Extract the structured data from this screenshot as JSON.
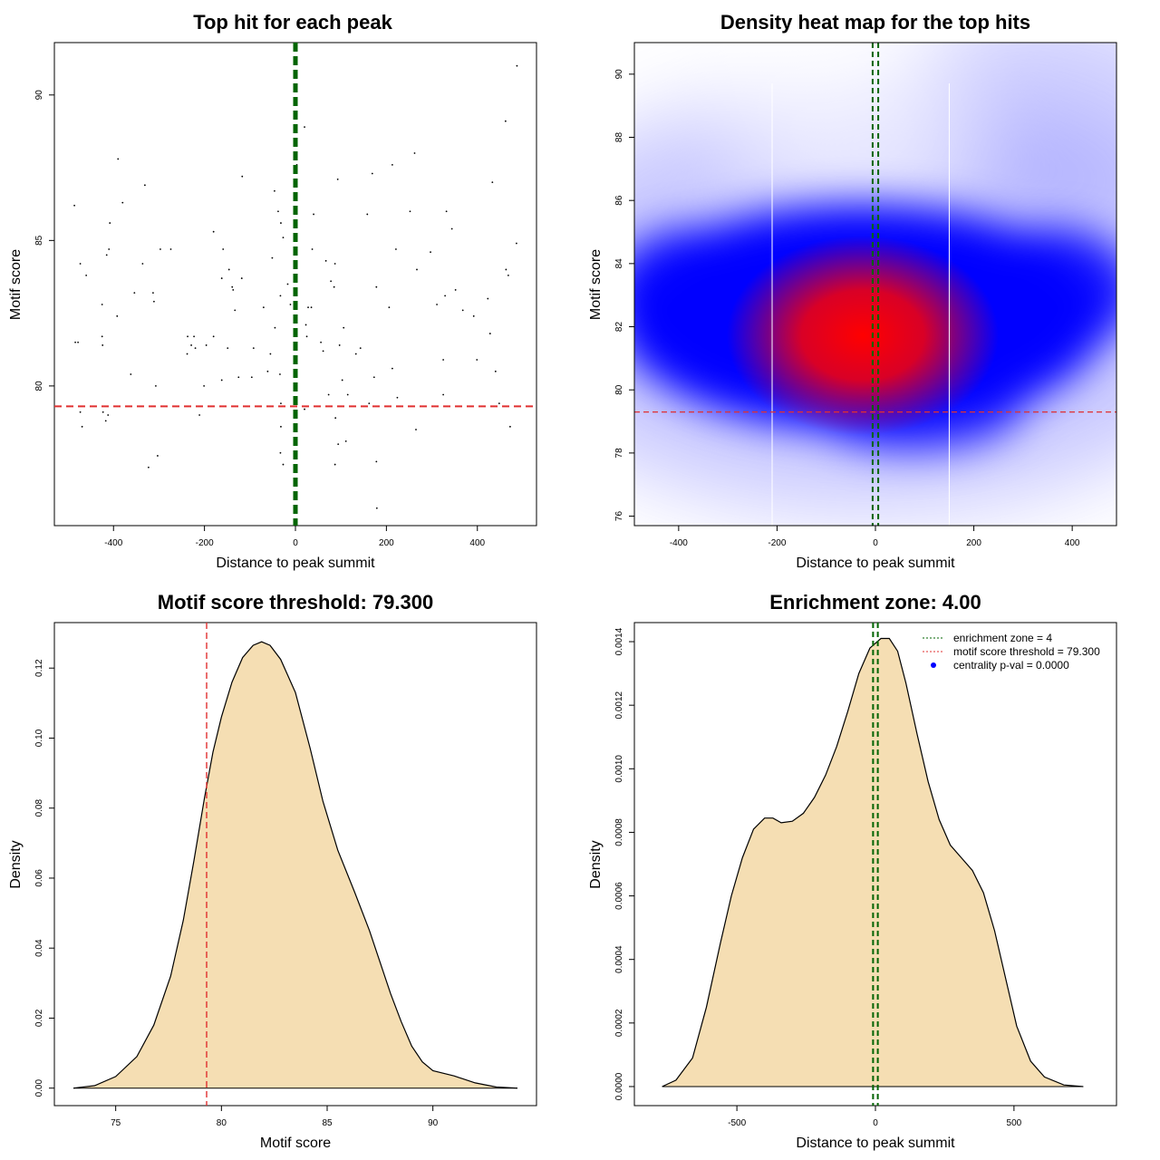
{
  "chart_data": [
    {
      "id": "scatter",
      "type": "scatter",
      "title": "Top hit for each peak",
      "xlabel": "Distance to peak summit",
      "ylabel": "Motif score",
      "xlim": [
        -530,
        530
      ],
      "ylim": [
        75.2,
        91.8
      ],
      "xticks": [
        -400,
        -200,
        0,
        200,
        400
      ],
      "xtick_labels": [
        "-400",
        "-200",
        "0",
        "200",
        "400"
      ],
      "yticks": [
        80,
        85,
        90
      ],
      "ytick_labels": [
        "80",
        "85",
        "90"
      ],
      "enrichment_lines_x": [
        -2,
        2
      ],
      "threshold_y": 79.3,
      "points": [
        [
          487,
          91.0
        ],
        [
          462,
          89.1
        ],
        [
          486,
          84.9
        ],
        [
          463,
          84.0
        ],
        [
          468,
          83.8
        ],
        [
          433,
          87.0
        ],
        [
          440,
          80.5
        ],
        [
          423,
          83.0
        ],
        [
          428,
          81.8
        ],
        [
          448,
          79.4
        ],
        [
          472,
          78.6
        ],
        [
          392,
          82.4
        ],
        [
          399,
          80.9
        ],
        [
          368,
          82.6
        ],
        [
          352,
          83.3
        ],
        [
          344,
          85.4
        ],
        [
          332,
          86.0
        ],
        [
          325,
          80.9
        ],
        [
          329,
          83.1
        ],
        [
          311,
          82.8
        ],
        [
          325,
          79.7
        ],
        [
          297,
          84.6
        ],
        [
          262,
          88.0
        ],
        [
          267,
          84.0
        ],
        [
          265,
          78.5
        ],
        [
          252,
          86.0
        ],
        [
          213,
          87.6
        ],
        [
          221,
          84.7
        ],
        [
          224,
          79.6
        ],
        [
          213,
          80.6
        ],
        [
          206,
          82.7
        ],
        [
          178,
          83.4
        ],
        [
          173,
          80.3
        ],
        [
          169,
          87.3
        ],
        [
          158,
          85.9
        ],
        [
          162,
          79.4
        ],
        [
          178,
          77.4
        ],
        [
          179,
          75.8
        ],
        [
          143,
          81.3
        ],
        [
          133,
          81.1
        ],
        [
          115,
          79.7
        ],
        [
          111,
          78.1
        ],
        [
          106,
          82.0
        ],
        [
          103,
          80.2
        ],
        [
          97,
          81.4
        ],
        [
          94,
          78.0
        ],
        [
          88,
          78.9
        ],
        [
          87,
          77.3
        ],
        [
          93,
          87.1
        ],
        [
          87,
          84.2
        ],
        [
          85,
          83.4
        ],
        [
          78,
          83.6
        ],
        [
          73,
          79.7
        ],
        [
          67,
          84.3
        ],
        [
          61,
          81.2
        ],
        [
          56,
          81.5
        ],
        [
          40,
          85.9
        ],
        [
          37,
          84.7
        ],
        [
          35,
          82.7
        ],
        [
          28,
          82.7
        ],
        [
          23,
          82.1
        ],
        [
          25,
          81.7
        ],
        [
          20,
          79.2
        ],
        [
          20,
          88.9
        ],
        [
          3,
          87.6
        ],
        [
          -3,
          87.4
        ],
        [
          -17,
          83.5
        ],
        [
          -11,
          82.8
        ],
        [
          -27,
          85.1
        ],
        [
          -38,
          86.0
        ],
        [
          -32,
          85.6
        ],
        [
          -46,
          86.7
        ],
        [
          -45,
          82.0
        ],
        [
          -51,
          84.4
        ],
        [
          -61,
          80.5
        ],
        [
          -55,
          81.1
        ],
        [
          -70,
          82.7
        ],
        [
          -32,
          79.4
        ],
        [
          -32,
          78.6
        ],
        [
          -33,
          77.7
        ],
        [
          -27,
          77.3
        ],
        [
          -34,
          80.4
        ],
        [
          -33,
          83.1
        ],
        [
          -92,
          81.3
        ],
        [
          -96,
          80.3
        ],
        [
          -117,
          87.2
        ],
        [
          -118,
          83.7
        ],
        [
          -125,
          80.3
        ],
        [
          -133,
          82.6
        ],
        [
          -139,
          83.4
        ],
        [
          -137,
          83.3
        ],
        [
          -146,
          84.0
        ],
        [
          -149,
          81.3
        ],
        [
          -159,
          84.7
        ],
        [
          -162,
          83.7
        ],
        [
          -162,
          80.2
        ],
        [
          -180,
          85.3
        ],
        [
          -180,
          81.7
        ],
        [
          -196,
          81.4
        ],
        [
          -201,
          80.0
        ],
        [
          -211,
          79.0
        ],
        [
          -220,
          81.3
        ],
        [
          -223,
          81.7
        ],
        [
          -229,
          81.4
        ],
        [
          -237,
          81.7
        ],
        [
          -238,
          81.1
        ],
        [
          -274,
          84.7
        ],
        [
          -297,
          84.7
        ],
        [
          -303,
          77.6
        ],
        [
          -307,
          80.0
        ],
        [
          -311,
          82.9
        ],
        [
          -313,
          83.2
        ],
        [
          -323,
          77.2
        ],
        [
          -331,
          86.9
        ],
        [
          -336,
          84.2
        ],
        [
          -362,
          80.4
        ],
        [
          -354,
          83.2
        ],
        [
          -380,
          86.3
        ],
        [
          -390,
          87.8
        ],
        [
          -392,
          82.4
        ],
        [
          -408,
          85.6
        ],
        [
          -410,
          84.7
        ],
        [
          -415,
          84.5
        ],
        [
          -412,
          79.0
        ],
        [
          -417,
          78.8
        ],
        [
          -423,
          79.1
        ],
        [
          -425,
          82.8
        ],
        [
          -425,
          81.7
        ],
        [
          -424,
          81.4
        ],
        [
          -460,
          83.8
        ],
        [
          -473,
          84.2
        ],
        [
          -473,
          79.1
        ],
        [
          -469,
          78.6
        ],
        [
          -478,
          81.5
        ],
        [
          -484,
          81.5
        ],
        [
          -486,
          86.2
        ]
      ]
    },
    {
      "id": "heatmap",
      "type": "heatmap",
      "title": "Density heat map for the top hits",
      "xlabel": "Distance to peak summit",
      "ylabel": "Motif score",
      "xlim": [
        -490,
        490
      ],
      "ylim": [
        75.7,
        91.0
      ],
      "xticks": [
        -400,
        -200,
        0,
        200,
        400
      ],
      "xtick_labels": [
        "-400",
        "-200",
        "0",
        "200",
        "400"
      ],
      "yticks": [
        76,
        78,
        80,
        82,
        84,
        86,
        88,
        90
      ],
      "ytick_labels": [
        "76",
        "78",
        "80",
        "82",
        "84",
        "86",
        "88",
        "90"
      ],
      "vertical_white_lines_x": [
        -210,
        150
      ],
      "enrichment_lines_x": [
        -2,
        2
      ],
      "threshold_y": 79.3,
      "density_peak": {
        "x": -10,
        "y": 81.5
      },
      "colors": {
        "low": "#ffffff",
        "mid": "#0000ff",
        "high": "#ff0000"
      }
    },
    {
      "id": "score_density",
      "type": "area",
      "title": "Motif score threshold: 79.300",
      "xlabel": "Motif score",
      "ylabel": "Density",
      "xlim": [
        72.1,
        94.9
      ],
      "ylim": [
        -0.005,
        0.133
      ],
      "xticks": [
        75,
        80,
        85,
        90
      ],
      "xtick_labels": [
        "75",
        "80",
        "85",
        "90"
      ],
      "yticks": [
        0.0,
        0.02,
        0.04,
        0.06,
        0.08,
        0.1,
        0.12
      ],
      "ytick_labels": [
        "0.00",
        "0.02",
        "0.04",
        "0.06",
        "0.08",
        "0.10",
        "0.12"
      ],
      "threshold_x": 79.3,
      "fill": "#f5deb3",
      "points": [
        [
          73.0,
          0.0
        ],
        [
          74.0,
          0.0007
        ],
        [
          75.0,
          0.0033
        ],
        [
          76.0,
          0.009
        ],
        [
          76.8,
          0.018
        ],
        [
          77.6,
          0.032
        ],
        [
          78.2,
          0.048
        ],
        [
          78.7,
          0.065
        ],
        [
          79.2,
          0.083
        ],
        [
          79.6,
          0.096
        ],
        [
          80.0,
          0.106
        ],
        [
          80.5,
          0.116
        ],
        [
          81.0,
          0.123
        ],
        [
          81.5,
          0.1265
        ],
        [
          81.9,
          0.1275
        ],
        [
          82.3,
          0.1265
        ],
        [
          82.8,
          0.1225
        ],
        [
          83.5,
          0.113
        ],
        [
          84.2,
          0.097
        ],
        [
          84.8,
          0.082
        ],
        [
          85.5,
          0.068
        ],
        [
          86.3,
          0.056
        ],
        [
          87.0,
          0.045
        ],
        [
          87.5,
          0.036
        ],
        [
          88.0,
          0.027
        ],
        [
          88.5,
          0.019
        ],
        [
          89.0,
          0.012
        ],
        [
          89.5,
          0.0075
        ],
        [
          90.0,
          0.005
        ],
        [
          91.0,
          0.0035
        ],
        [
          92.0,
          0.0015
        ],
        [
          93.0,
          0.0003
        ],
        [
          94.0,
          0.0
        ]
      ]
    },
    {
      "id": "distance_density",
      "type": "area",
      "title": "Enrichment zone: 4.00",
      "xlabel": "Distance to peak summit",
      "ylabel": "Density",
      "xlim": [
        -870,
        870
      ],
      "ylim": [
        -6e-05,
        0.00146
      ],
      "xticks": [
        -500,
        0,
        500
      ],
      "xtick_labels": [
        "-500",
        "0",
        "500"
      ],
      "yticks": [
        0.0,
        0.0002,
        0.0004,
        0.0006,
        0.0008,
        0.001,
        0.0012,
        0.0014
      ],
      "ytick_labels": [
        "0.0000",
        "0.0002",
        "0.0004",
        "0.0006",
        "0.0008",
        "0.0010",
        "0.0012",
        "0.0014"
      ],
      "enrichment_lines_x": [
        -2,
        2
      ],
      "fill": "#f5deb3",
      "points": [
        [
          -770,
          0.0
        ],
        [
          -720,
          2e-05
        ],
        [
          -660,
          9e-05
        ],
        [
          -610,
          0.00025
        ],
        [
          -560,
          0.00045
        ],
        [
          -520,
          0.0006
        ],
        [
          -480,
          0.00072
        ],
        [
          -440,
          0.00081
        ],
        [
          -400,
          0.000845
        ],
        [
          -370,
          0.000845
        ],
        [
          -340,
          0.00083
        ],
        [
          -300,
          0.000835
        ],
        [
          -260,
          0.00086
        ],
        [
          -220,
          0.00091
        ],
        [
          -180,
          0.00098
        ],
        [
          -140,
          0.00107
        ],
        [
          -100,
          0.00118
        ],
        [
          -60,
          0.0013
        ],
        [
          -20,
          0.00138
        ],
        [
          20,
          0.00141
        ],
        [
          50,
          0.00141
        ],
        [
          80,
          0.00137
        ],
        [
          110,
          0.00127
        ],
        [
          150,
          0.00111
        ],
        [
          190,
          0.00096
        ],
        [
          230,
          0.00084
        ],
        [
          270,
          0.00076
        ],
        [
          310,
          0.00072
        ],
        [
          350,
          0.00068
        ],
        [
          390,
          0.00061
        ],
        [
          430,
          0.00049
        ],
        [
          470,
          0.00034
        ],
        [
          510,
          0.00019
        ],
        [
          560,
          8e-05
        ],
        [
          610,
          3e-05
        ],
        [
          680,
          5e-06
        ],
        [
          750,
          0.0
        ]
      ],
      "legend": [
        {
          "label": "enrichment zone = 4",
          "style": "green-dotted"
        },
        {
          "label": "motif score threshold = 79.300",
          "style": "red-dotted"
        },
        {
          "label": "centrality p-val = 0.0000",
          "style": "blue-dot"
        }
      ]
    }
  ],
  "colors": {
    "enrichment": "#006400",
    "threshold": "#e03030",
    "fill": "#f5deb3",
    "density_low": "#ffffff",
    "density_mid": "#0000ff",
    "density_high": "#ff0000"
  }
}
